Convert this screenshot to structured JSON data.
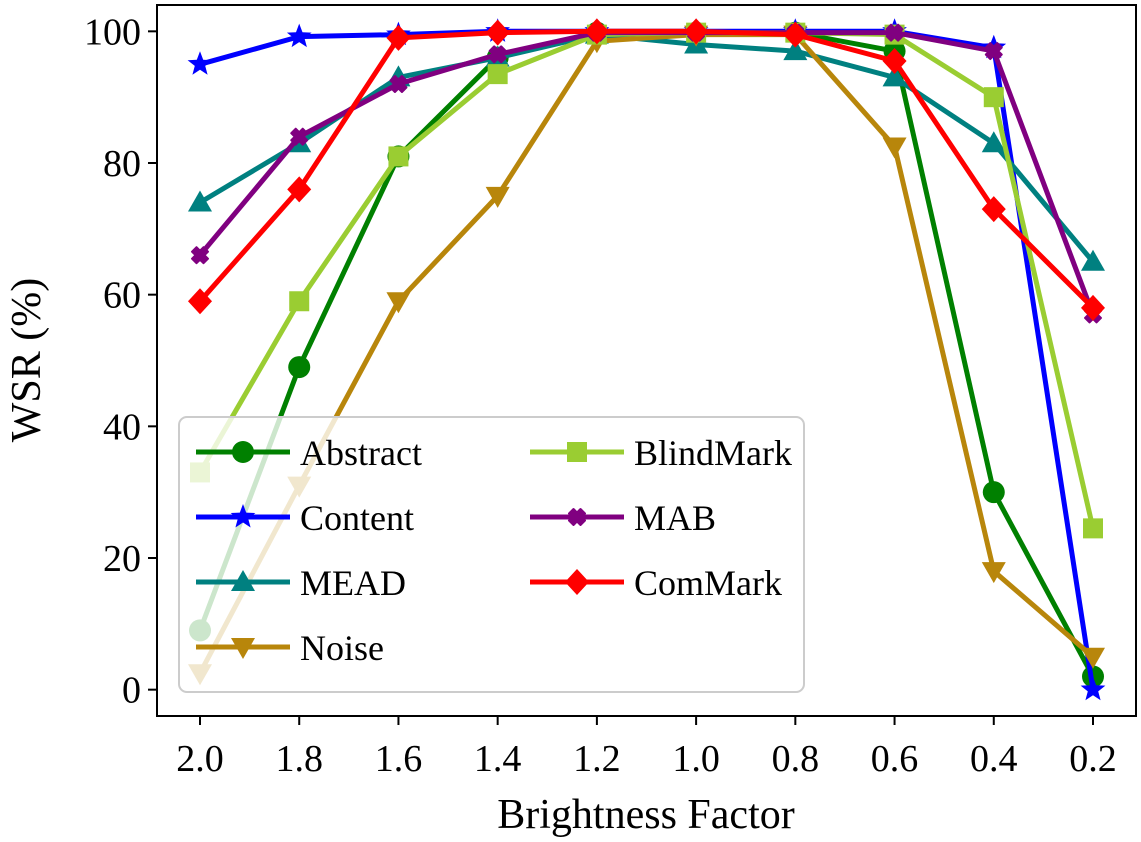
{
  "chart_data": {
    "type": "line",
    "title": "",
    "xlabel": "Brightness Factor",
    "ylabel": "WSR (%)",
    "categories": [
      "2.0",
      "1.8",
      "1.6",
      "1.4",
      "1.2",
      "1.0",
      "0.8",
      "0.6",
      "0.4",
      "0.2"
    ],
    "ylim": [
      -4,
      104
    ],
    "yticks": [
      0,
      20,
      40,
      60,
      80,
      100
    ],
    "legend_position": "lower-left",
    "series": [
      {
        "name": "Abstract",
        "color": "#008000",
        "marker": "circle",
        "values": [
          9,
          49,
          81,
          96,
          99.8,
          99.8,
          99.8,
          97,
          30,
          2
        ]
      },
      {
        "name": "Content",
        "color": "#0000FF",
        "marker": "star",
        "values": [
          95,
          99.2,
          99.5,
          100,
          100,
          100,
          100,
          100,
          97.5,
          0
        ]
      },
      {
        "name": "MEAD",
        "color": "#008080",
        "marker": "triangle-up",
        "values": [
          74,
          83,
          93,
          96,
          99.5,
          98,
          97,
          93,
          83,
          65
        ]
      },
      {
        "name": "Noise",
        "color": "#B8860B",
        "marker": "triangle-down",
        "values": [
          2.5,
          31,
          59,
          75,
          98.5,
          99.5,
          99.5,
          82.5,
          18,
          5
        ]
      },
      {
        "name": "BlindMark",
        "color": "#9ACD32",
        "marker": "square",
        "values": [
          33,
          59,
          81,
          93.5,
          99.5,
          99.8,
          99.8,
          99.5,
          90,
          24.5
        ]
      },
      {
        "name": "MAB",
        "color": "#800080",
        "marker": "x",
        "values": [
          66,
          84,
          92,
          96.5,
          99.8,
          99.8,
          99.8,
          99.8,
          97,
          57
        ]
      },
      {
        "name": "ComMark",
        "color": "#FF0000",
        "marker": "diamond",
        "values": [
          59,
          76,
          99,
          99.8,
          100,
          100,
          99.5,
          95.5,
          73,
          58
        ]
      }
    ]
  }
}
